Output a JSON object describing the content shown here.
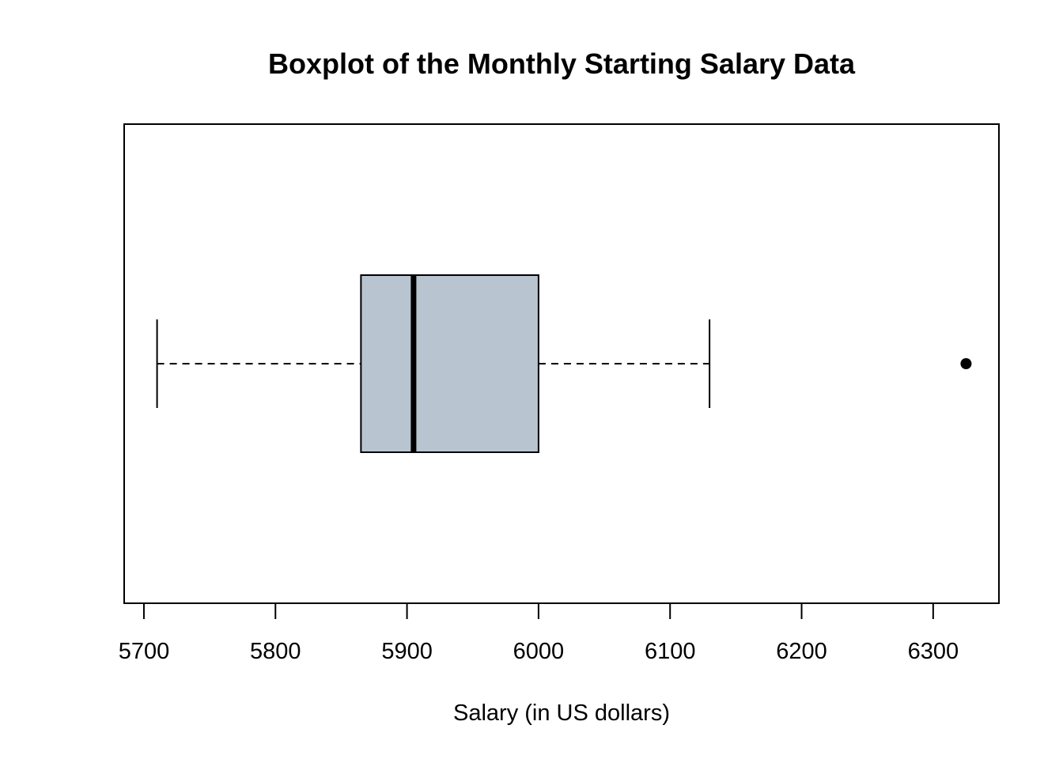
{
  "chart_data": {
    "type": "boxplot",
    "orientation": "horizontal",
    "title": "Boxplot of the Monthly Starting Salary  Data",
    "xlabel": "Salary (in US dollars)",
    "ylabel": "",
    "xlim": [
      5685,
      6350
    ],
    "ticks": [
      5700,
      5800,
      5900,
      6000,
      6100,
      6200,
      6300
    ],
    "tick_labels": [
      "5700",
      "5800",
      "5900",
      "6000",
      "6100",
      "6200",
      "6300"
    ],
    "grid": false,
    "box": {
      "whisker_low": 5710,
      "q1": 5865,
      "median": 5905,
      "q3": 6000,
      "whisker_high": 6130,
      "outliers": [
        6325
      ]
    },
    "colors": {
      "box_fill": "#B8C5D1",
      "stroke": "#000000"
    }
  }
}
